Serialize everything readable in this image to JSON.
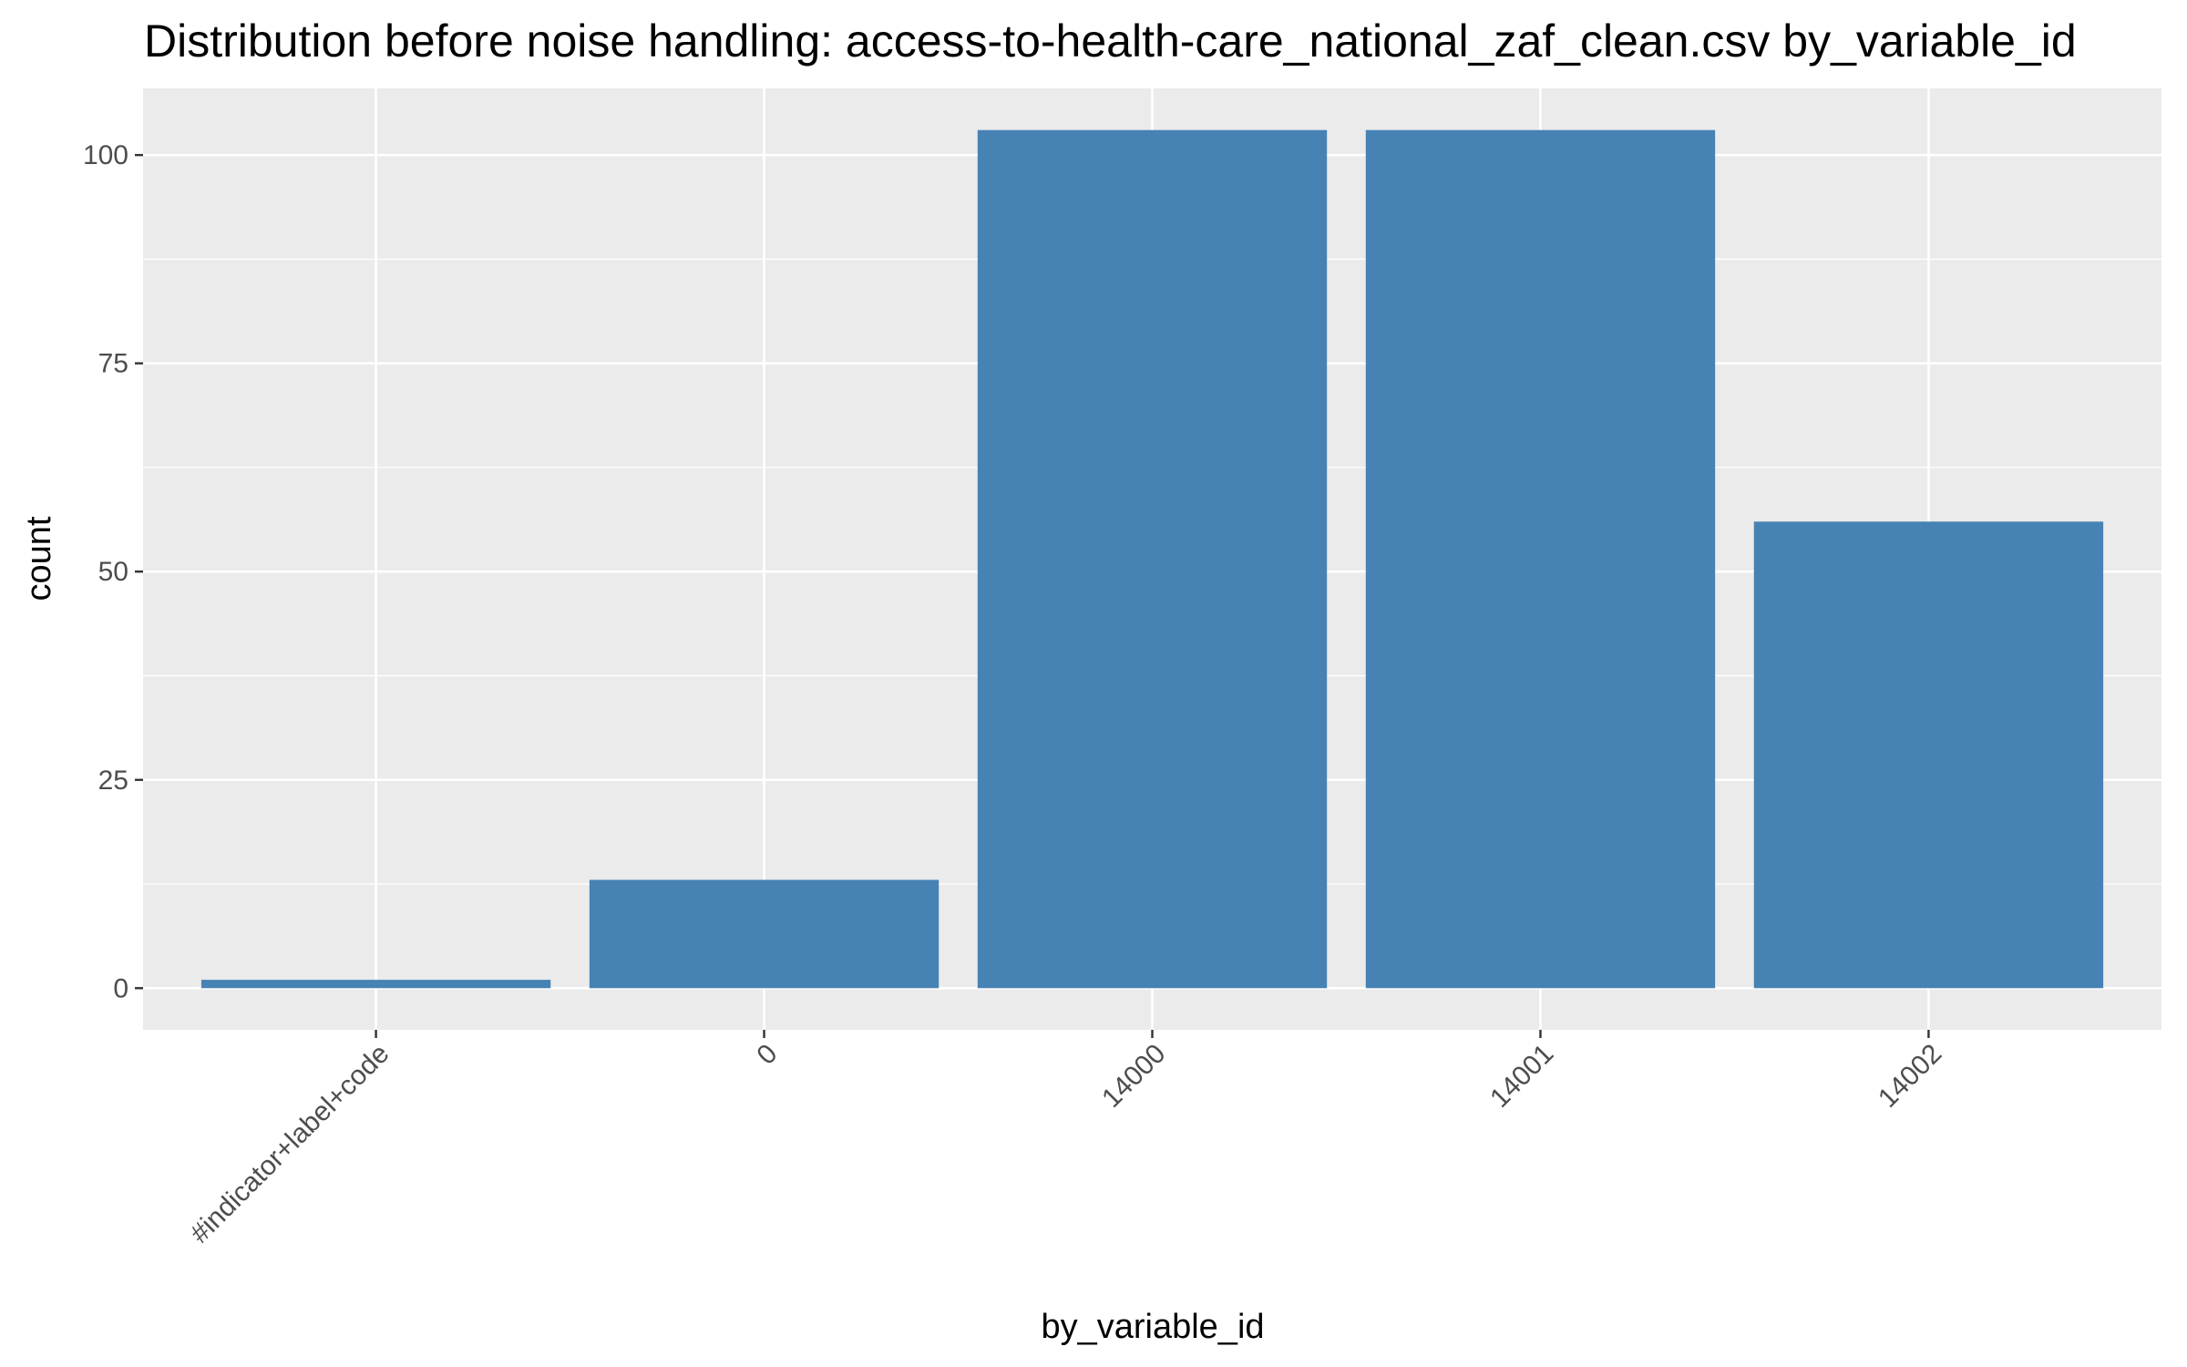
{
  "chart_data": {
    "type": "bar",
    "title": "Distribution before noise handling: access-to-health-care_national_zaf_clean.csv by_variable_id",
    "xlabel": "by_variable_id",
    "ylabel": "count",
    "categories": [
      "#indicator+label+code",
      "0",
      "14000",
      "14001",
      "14002"
    ],
    "values": [
      1,
      13,
      103,
      103,
      56
    ],
    "ylim": [
      -5,
      108
    ],
    "yticks": [
      0,
      25,
      50,
      75,
      100
    ],
    "grid": true,
    "legend": "none",
    "colors": {
      "bar": "#4682b4",
      "panel": "#ebebeb",
      "grid": "#ffffff",
      "tick_label": "#4d4d4d",
      "tick_mark": "#333333"
    }
  }
}
